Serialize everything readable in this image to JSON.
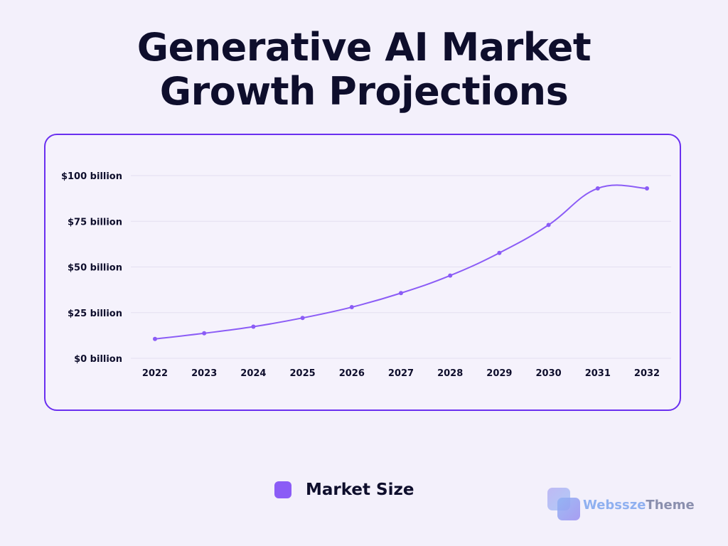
{
  "header": {
    "title_line1": "Generative AI Market",
    "title_line2": "Growth Projections"
  },
  "colors": {
    "accent": "#8b5cf6",
    "border": "#6a2ff0",
    "text": "#0e0e2c"
  },
  "chart_data": {
    "type": "line",
    "title": "Generative AI Market Growth Projections",
    "xlabel": "",
    "ylabel": "",
    "categories": [
      "2022",
      "2023",
      "2024",
      "2025",
      "2026",
      "2027",
      "2028",
      "2029",
      "2030",
      "2031",
      "2032"
    ],
    "series": [
      {
        "name": "Market Size",
        "values": [
          10.6,
          13.7,
          17.3,
          22.1,
          28.0,
          35.7,
          45.3,
          57.7,
          73.0,
          93.0,
          93.0
        ]
      }
    ],
    "ylim": [
      0,
      100
    ],
    "yticks": [
      {
        "value": 0,
        "label": "$0 billion"
      },
      {
        "value": 25,
        "label": "$25 billion"
      },
      {
        "value": 50,
        "label": "$50 billion"
      },
      {
        "value": 75,
        "label": "$75 billion"
      },
      {
        "value": 100,
        "label": "$100 billion"
      }
    ],
    "grid": true,
    "legend_position": "bottom"
  },
  "legend": {
    "label": "Market Size"
  },
  "brand": {
    "name_part1": "Webssze",
    "name_part2": "Theme"
  }
}
